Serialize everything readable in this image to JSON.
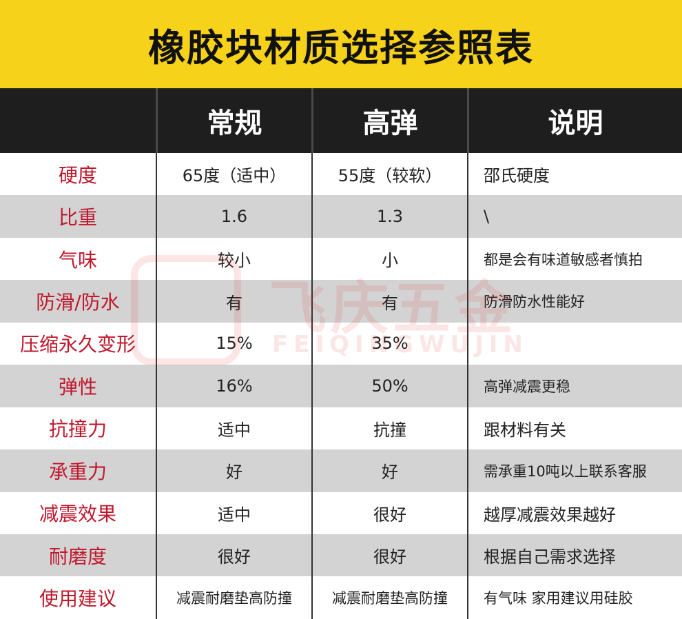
{
  "title": "橡胶块材质选择参照表",
  "header": {
    "col0": "",
    "col1": "常规",
    "col2": "高弹",
    "col3": "说明"
  },
  "rows": [
    {
      "label": "硬度",
      "regular": "65度（适中）",
      "high": "55度（较软）",
      "note": "邵氏硬度"
    },
    {
      "label": "比重",
      "regular": "1.6",
      "high": "1.3",
      "note": "\\"
    },
    {
      "label": "气味",
      "regular": "较小",
      "high": "小",
      "note": "都是会有味道敏感者慎拍"
    },
    {
      "label": "防滑/防水",
      "regular": "有",
      "high": "有",
      "note": "防滑防水性能好"
    },
    {
      "label": "压缩永久变形",
      "regular": "15%",
      "high": "35%",
      "note": ""
    },
    {
      "label": "弹性",
      "regular": "16%",
      "high": "50%",
      "note": "高弹减震更稳"
    },
    {
      "label": "抗撞力",
      "regular": "适中",
      "high": "抗撞",
      "note": "跟材料有关"
    },
    {
      "label": "承重力",
      "regular": "好",
      "high": "好",
      "note": "需承重10吨以上联系客服"
    },
    {
      "label": "减震效果",
      "regular": "适中",
      "high": "很好",
      "note": "越厚减震效果越好"
    },
    {
      "label": "耐磨度",
      "regular": "很好",
      "high": "很好",
      "note": "根据自己需求选择"
    },
    {
      "label": "使用建议",
      "regular": "减震耐磨垫高防撞",
      "high": "减震耐磨垫高防撞",
      "note": "有气味 家用建议用硅胶"
    }
  ],
  "watermark": {
    "brand": "飞庆五金",
    "sub": "FEIQINGWUJIN"
  },
  "colors": {
    "title_bg": "#f7d21a",
    "header_bg": "#1e1e1e",
    "label_red": "#c0182c",
    "stripe_gray": "#d3d3d3"
  }
}
